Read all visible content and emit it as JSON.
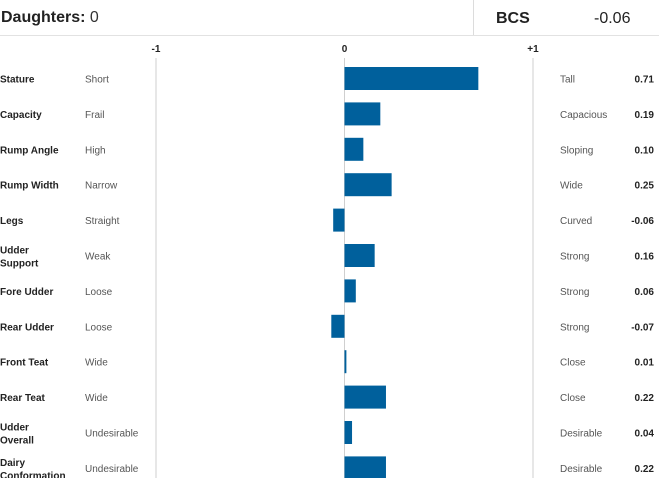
{
  "header": {
    "daughters_label": "Daughters:",
    "daughters_value": "0",
    "bcs_label": "BCS",
    "bcs_value": "-0.06"
  },
  "colors": {
    "bar": "#00609c",
    "axis": "#cfcfcf"
  },
  "chart_data": {
    "type": "bar",
    "orientation": "horizontal",
    "xlim": [
      -1,
      1
    ],
    "ticks": [
      "-1",
      "0",
      "+1"
    ],
    "grid": false,
    "rows": [
      {
        "trait": [
          "Stature"
        ],
        "low": "Short",
        "high": "Tall",
        "value": 0.71,
        "label": "0.71"
      },
      {
        "trait": [
          "Capacity"
        ],
        "low": "Frail",
        "high": "Capacious",
        "value": 0.19,
        "label": "0.19"
      },
      {
        "trait": [
          "Rump Angle"
        ],
        "low": "High",
        "high": "Sloping",
        "value": 0.1,
        "label": "0.10"
      },
      {
        "trait": [
          "Rump Width"
        ],
        "low": "Narrow",
        "high": "Wide",
        "value": 0.25,
        "label": "0.25"
      },
      {
        "trait": [
          "Legs"
        ],
        "low": "Straight",
        "high": "Curved",
        "value": -0.06,
        "label": "-0.06"
      },
      {
        "trait": [
          "Udder",
          "Support"
        ],
        "low": "Weak",
        "high": "Strong",
        "value": 0.16,
        "label": "0.16"
      },
      {
        "trait": [
          "Fore Udder"
        ],
        "low": "Loose",
        "high": "Strong",
        "value": 0.06,
        "label": "0.06"
      },
      {
        "trait": [
          "Rear Udder"
        ],
        "low": "Loose",
        "high": "Strong",
        "value": -0.07,
        "label": "-0.07"
      },
      {
        "trait": [
          "Front Teat"
        ],
        "low": "Wide",
        "high": "Close",
        "value": 0.01,
        "label": "0.01"
      },
      {
        "trait": [
          "Rear Teat"
        ],
        "low": "Wide",
        "high": "Close",
        "value": 0.22,
        "label": "0.22"
      },
      {
        "trait": [
          "Udder",
          "Overall"
        ],
        "low": "Undesirable",
        "high": "Desirable",
        "value": 0.04,
        "label": "0.04"
      },
      {
        "trait": [
          "Dairy",
          "Conformation"
        ],
        "low": "Undesirable",
        "high": "Desirable",
        "value": 0.22,
        "label": "0.22"
      }
    ]
  }
}
